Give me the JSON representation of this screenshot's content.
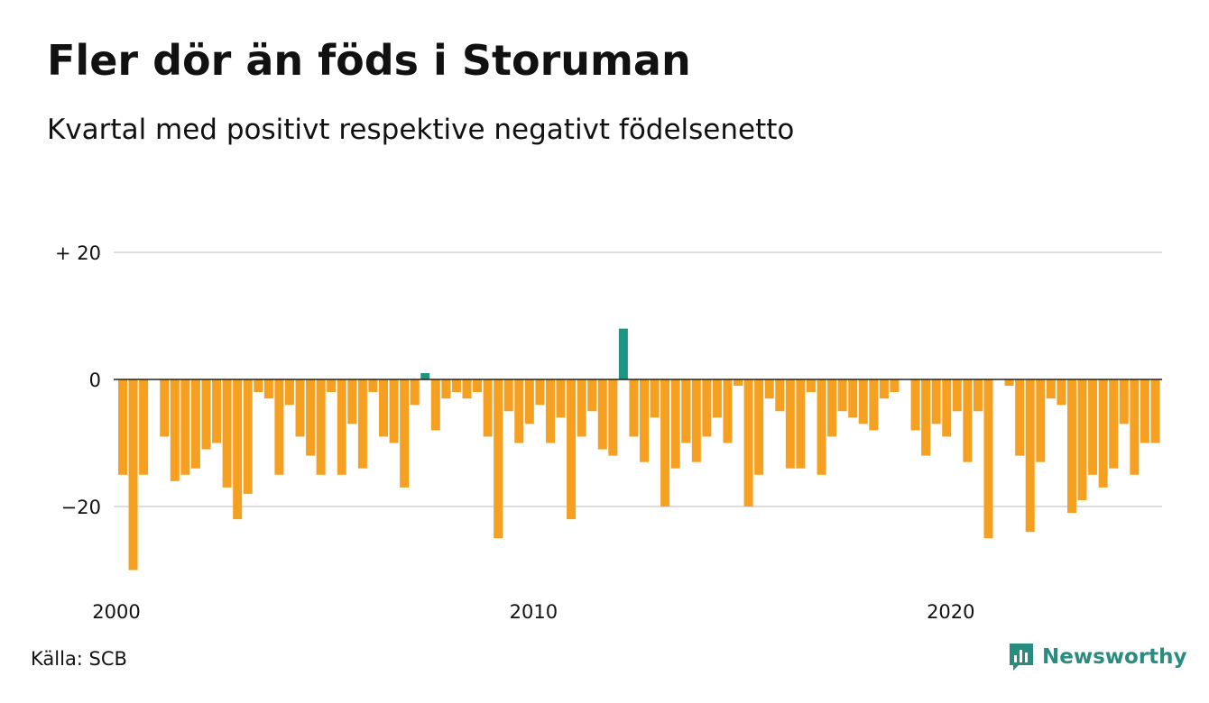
{
  "title": "Fler dör än föds i Storuman",
  "subtitle": "Kvartal med positivt respektive negativt födelsenetto",
  "source": "Källa: SCB",
  "brand": "Newsworthy",
  "colors": {
    "negative": "#f5a020",
    "positive": "#1c9682",
    "grid": "#dddddd",
    "zero_line": "#222222",
    "brand": "#2a8c7e"
  },
  "chart_data": {
    "type": "bar",
    "ylim": [
      -30,
      20
    ],
    "yticks": [
      20,
      0,
      -20
    ],
    "ytick_labels": [
      "+ 20",
      "0",
      "−20"
    ],
    "xticks": [
      "2000",
      "2010",
      "2020"
    ],
    "grid": true,
    "first_quarter": "2000 Q1",
    "values": [
      -15,
      -30,
      -15,
      0,
      -9,
      -16,
      -15,
      -14,
      -11,
      -10,
      -17,
      -22,
      -18,
      -2,
      -3,
      -15,
      -4,
      -9,
      -12,
      -15,
      -2,
      -15,
      -7,
      -14,
      -2,
      -9,
      -10,
      -17,
      -4,
      1,
      -8,
      -3,
      -2,
      -3,
      -2,
      -9,
      -25,
      -5,
      -10,
      -7,
      -4,
      -10,
      -6,
      -22,
      -9,
      -5,
      -11,
      -12,
      8,
      -9,
      -13,
      -6,
      -20,
      -14,
      -10,
      -13,
      -9,
      -6,
      -10,
      -1,
      -20,
      -15,
      -3,
      -5,
      -14,
      -14,
      -2,
      -15,
      -9,
      -5,
      -6,
      -7,
      -8,
      -3,
      -2,
      0,
      -8,
      -12,
      -7,
      -9,
      -5,
      -13,
      -5,
      -25,
      0,
      -1,
      -12,
      -24,
      -13,
      -3,
      -4,
      -21,
      -19,
      -15,
      -17,
      -14,
      -7,
      -15,
      -10,
      -10
    ]
  }
}
